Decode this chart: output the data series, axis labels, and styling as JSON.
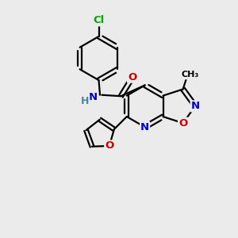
{
  "bg_color": "#ebebeb",
  "bond_color": "#000000",
  "bond_width": 1.6,
  "atom_colors": {
    "C": "#000000",
    "N": "#0000cc",
    "O": "#cc0000",
    "Cl": "#00aa00",
    "H": "#4488aa"
  },
  "font_size": 8.5,
  "methyl_label": "CH₃",
  "nh_label": "NH",
  "h_label": "H"
}
